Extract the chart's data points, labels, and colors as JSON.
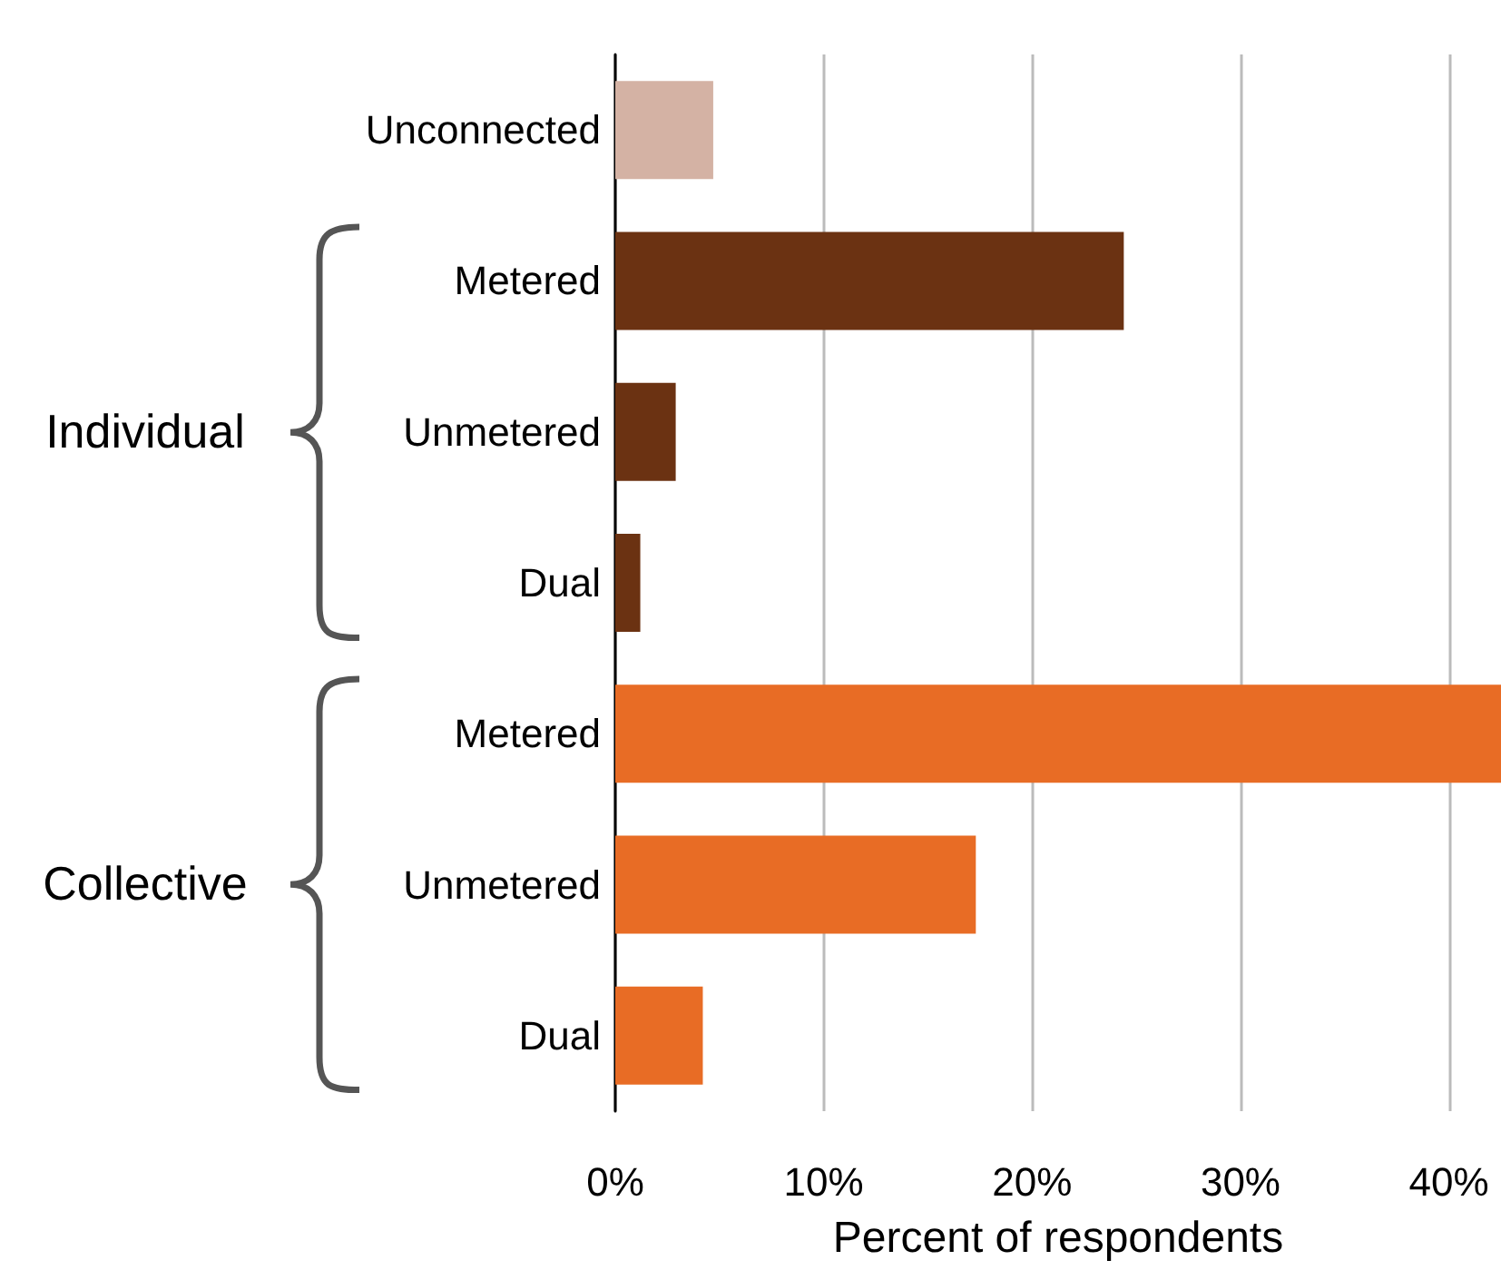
{
  "chart_data": {
    "type": "bar",
    "orientation": "horizontal",
    "xlabel": "Percent of respondents",
    "categories": [
      "Unconnected",
      "Metered",
      "Unmetered",
      "Dual",
      "Metered",
      "Unmetered",
      "Dual"
    ],
    "values": [
      4.7,
      24.4,
      2.9,
      1.2,
      42.5,
      17.3,
      4.2
    ],
    "colors": [
      "#d4b2a4",
      "#6b3212",
      "#6b3212",
      "#6b3212",
      "#e86c25",
      "#e86c25",
      "#e86c25"
    ],
    "xlim": [
      0,
      42.5
    ],
    "xticks": [
      {
        "value": 0,
        "label": "0%"
      },
      {
        "value": 10,
        "label": "10%"
      },
      {
        "value": 20,
        "label": "20%"
      },
      {
        "value": 30,
        "label": "30%"
      },
      {
        "value": 40,
        "label": "40%"
      }
    ],
    "grid": "x",
    "annotations": [
      "Individual",
      "Collective"
    ]
  }
}
